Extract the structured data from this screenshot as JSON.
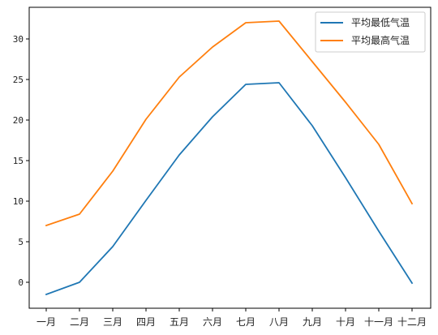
{
  "chart_data": {
    "type": "line",
    "categories": [
      "一月",
      "二月",
      "三月",
      "四月",
      "五月",
      "六月",
      "七月",
      "八月",
      "九月",
      "十月",
      "十一月",
      "十二月"
    ],
    "series": [
      {
        "name": "平均最低气温",
        "color": "#1f77b4",
        "values": [
          -1.5,
          0.0,
          4.4,
          10.1,
          15.7,
          20.4,
          24.4,
          24.6,
          19.3,
          12.9,
          6.3,
          -0.1
        ]
      },
      {
        "name": "平均最高气温",
        "color": "#ff7f0e",
        "values": [
          7.0,
          8.4,
          13.7,
          20.1,
          25.3,
          29.0,
          32.0,
          32.2,
          27.2,
          22.2,
          17.0,
          9.7
        ]
      }
    ],
    "yticks": [
      0,
      5,
      10,
      15,
      20,
      25,
      30
    ],
    "ylim": [
      -3.2,
      33.9
    ],
    "grid": false,
    "legend_position": "top-right",
    "title": "",
    "xlabel": "",
    "ylabel": ""
  }
}
